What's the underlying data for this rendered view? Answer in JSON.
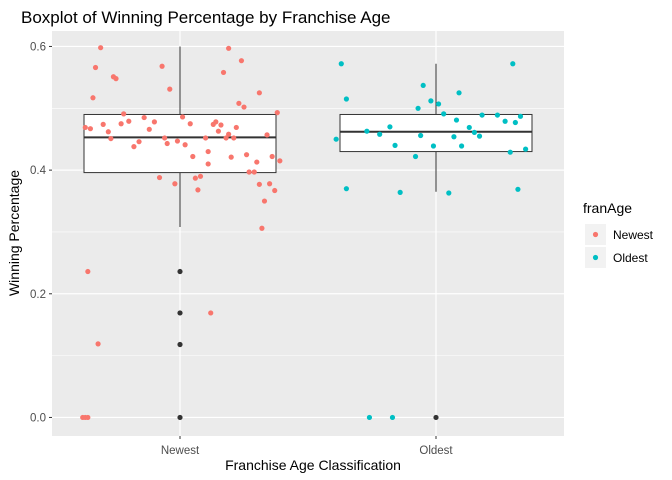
{
  "chart_data": {
    "type": "boxplot",
    "title": "Boxplot of Winning Percentage by Franchise Age",
    "xlabel": "Franchise Age Classification",
    "ylabel": "Winning Percentage",
    "ylim": [
      -0.03,
      0.625
    ],
    "y_ticks": [
      0.0,
      0.2,
      0.4,
      0.6
    ],
    "y_tick_labels": [
      "0.0",
      "0.2",
      "0.4",
      "0.6"
    ],
    "grid": true,
    "legend_position": "right",
    "legend_title": "franAge",
    "categories": [
      "Newest",
      "Oldest"
    ],
    "series": [
      {
        "name": "Newest",
        "color": "#F8766D",
        "box": {
          "q1": 0.396,
          "median": 0.453,
          "q3": 0.49,
          "whisker_low": 0.308,
          "whisker_high": 0.6
        },
        "outliers": [
          0.0,
          0.118,
          0.169,
          0.236
        ],
        "points": [
          [
            -0.38,
            0.0
          ],
          [
            -0.37,
            0.0
          ],
          [
            -0.36,
            0.0
          ],
          [
            -0.37,
            0.469
          ],
          [
            -0.35,
            0.467
          ],
          [
            -0.36,
            0.236
          ],
          [
            -0.34,
            0.517
          ],
          [
            -0.33,
            0.566
          ],
          [
            -0.32,
            0.119
          ],
          [
            -0.31,
            0.598
          ],
          [
            -0.3,
            0.474
          ],
          [
            -0.28,
            0.462
          ],
          [
            -0.27,
            0.451
          ],
          [
            -0.26,
            0.551
          ],
          [
            -0.25,
            0.548
          ],
          [
            -0.23,
            0.475
          ],
          [
            -0.22,
            0.491
          ],
          [
            -0.2,
            0.479
          ],
          [
            -0.18,
            0.438
          ],
          [
            -0.16,
            0.446
          ],
          [
            -0.14,
            0.485
          ],
          [
            -0.12,
            0.466
          ],
          [
            -0.1,
            0.478
          ],
          [
            -0.08,
            0.388
          ],
          [
            -0.07,
            0.568
          ],
          [
            -0.06,
            0.452
          ],
          [
            -0.05,
            0.443
          ],
          [
            -0.04,
            0.531
          ],
          [
            -0.02,
            0.378
          ],
          [
            -0.01,
            0.447
          ],
          [
            0.01,
            0.486
          ],
          [
            0.02,
            0.441
          ],
          [
            0.04,
            0.475
          ],
          [
            0.05,
            0.422
          ],
          [
            0.06,
            0.387
          ],
          [
            0.07,
            0.368
          ],
          [
            0.08,
            0.39
          ],
          [
            0.1,
            0.452
          ],
          [
            0.11,
            0.43
          ],
          [
            0.11,
            0.41
          ],
          [
            0.12,
            0.169
          ],
          [
            0.13,
            0.474
          ],
          [
            0.14,
            0.478
          ],
          [
            0.15,
            0.463
          ],
          [
            0.16,
            0.473
          ],
          [
            0.17,
            0.558
          ],
          [
            0.18,
            0.452
          ],
          [
            0.19,
            0.458
          ],
          [
            0.19,
            0.597
          ],
          [
            0.2,
            0.421
          ],
          [
            0.21,
            0.452
          ],
          [
            0.22,
            0.469
          ],
          [
            0.23,
            0.508
          ],
          [
            0.24,
            0.577
          ],
          [
            0.25,
            0.502
          ],
          [
            0.26,
            0.425
          ],
          [
            0.27,
            0.397
          ],
          [
            0.29,
            0.397
          ],
          [
            0.3,
            0.413
          ],
          [
            0.31,
            0.377
          ],
          [
            0.31,
            0.525
          ],
          [
            0.32,
            0.306
          ],
          [
            0.33,
            0.35
          ],
          [
            0.34,
            0.457
          ],
          [
            0.35,
            0.378
          ],
          [
            0.36,
            0.422
          ],
          [
            0.37,
            0.367
          ],
          [
            0.38,
            0.493
          ],
          [
            0.39,
            0.415
          ]
        ]
      },
      {
        "name": "Oldest",
        "color": "#00BFC4",
        "box": {
          "q1": 0.43,
          "median": 0.462,
          "q3": 0.49,
          "whisker_low": 0.365,
          "whisker_high": 0.572
        },
        "outliers": [
          0.0
        ],
        "points": [
          [
            -0.39,
            0.45
          ],
          [
            -0.37,
            0.572
          ],
          [
            -0.35,
            0.515
          ],
          [
            -0.35,
            0.37
          ],
          [
            -0.27,
            0.463
          ],
          [
            -0.26,
            0.0
          ],
          [
            -0.22,
            0.458
          ],
          [
            -0.18,
            0.47
          ],
          [
            -0.17,
            0.0
          ],
          [
            -0.16,
            0.44
          ],
          [
            -0.14,
            0.364
          ],
          [
            -0.08,
            0.422
          ],
          [
            -0.07,
            0.5
          ],
          [
            -0.06,
            0.456
          ],
          [
            -0.05,
            0.537
          ],
          [
            -0.02,
            0.512
          ],
          [
            -0.01,
            0.439
          ],
          [
            0.01,
            0.507
          ],
          [
            0.03,
            0.491
          ],
          [
            0.05,
            0.363
          ],
          [
            0.07,
            0.454
          ],
          [
            0.08,
            0.481
          ],
          [
            0.09,
            0.525
          ],
          [
            0.1,
            0.439
          ],
          [
            0.13,
            0.469
          ],
          [
            0.15,
            0.461
          ],
          [
            0.17,
            0.455
          ],
          [
            0.18,
            0.489
          ],
          [
            0.24,
            0.489
          ],
          [
            0.27,
            0.479
          ],
          [
            0.29,
            0.429
          ],
          [
            0.3,
            0.572
          ],
          [
            0.31,
            0.477
          ],
          [
            0.32,
            0.369
          ],
          [
            0.33,
            0.487
          ],
          [
            0.35,
            0.434
          ]
        ]
      }
    ]
  }
}
